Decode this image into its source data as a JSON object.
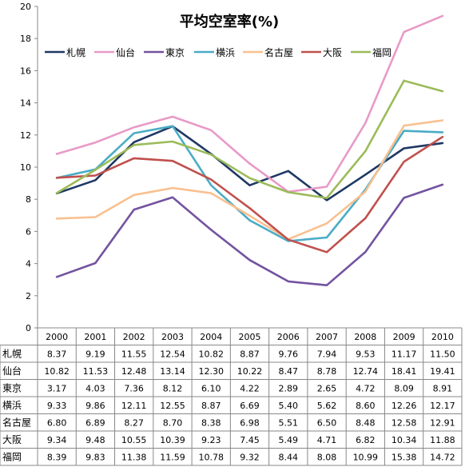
{
  "chart_data": {
    "type": "line",
    "title": "平均空室率(%)",
    "xlabel": "",
    "ylabel": "",
    "ylim": [
      0,
      20
    ],
    "ytick_step": 2,
    "grid": false,
    "legend_position": "top",
    "data_table": true,
    "categories": [
      "2000",
      "2001",
      "2002",
      "2003",
      "2004",
      "2005",
      "2006",
      "2007",
      "2008",
      "2009",
      "2010"
    ],
    "series": [
      {
        "name": "札幌",
        "color": "#1F3864",
        "values": [
          8.37,
          9.19,
          11.55,
          12.54,
          10.82,
          8.87,
          9.76,
          7.94,
          9.53,
          11.17,
          11.5
        ]
      },
      {
        "name": "仙台",
        "color": "#E89AC7",
        "values": [
          10.82,
          11.53,
          12.48,
          13.14,
          12.3,
          10.22,
          8.47,
          8.78,
          12.74,
          18.41,
          19.41
        ]
      },
      {
        "name": "東京",
        "color": "#7353A0",
        "values": [
          3.17,
          4.03,
          7.36,
          8.12,
          6.1,
          4.22,
          2.89,
          2.65,
          4.72,
          8.09,
          8.91
        ]
      },
      {
        "name": "横浜",
        "color": "#4BACC6",
        "values": [
          9.33,
          9.86,
          12.11,
          12.55,
          8.87,
          6.69,
          5.4,
          5.62,
          8.6,
          12.26,
          12.17
        ]
      },
      {
        "name": "名古屋",
        "color": "#F9C08F",
        "values": [
          6.8,
          6.89,
          8.27,
          8.7,
          8.38,
          6.98,
          5.51,
          6.5,
          8.48,
          12.58,
          12.91
        ]
      },
      {
        "name": "大阪",
        "color": "#C0504D",
        "values": [
          9.34,
          9.48,
          10.55,
          10.39,
          9.23,
          7.45,
          5.49,
          4.71,
          6.82,
          10.34,
          11.88
        ]
      },
      {
        "name": "福岡",
        "color": "#9BBB59",
        "values": [
          8.39,
          9.83,
          11.38,
          11.59,
          10.78,
          9.32,
          8.44,
          8.08,
          10.99,
          15.38,
          14.72
        ]
      }
    ]
  }
}
